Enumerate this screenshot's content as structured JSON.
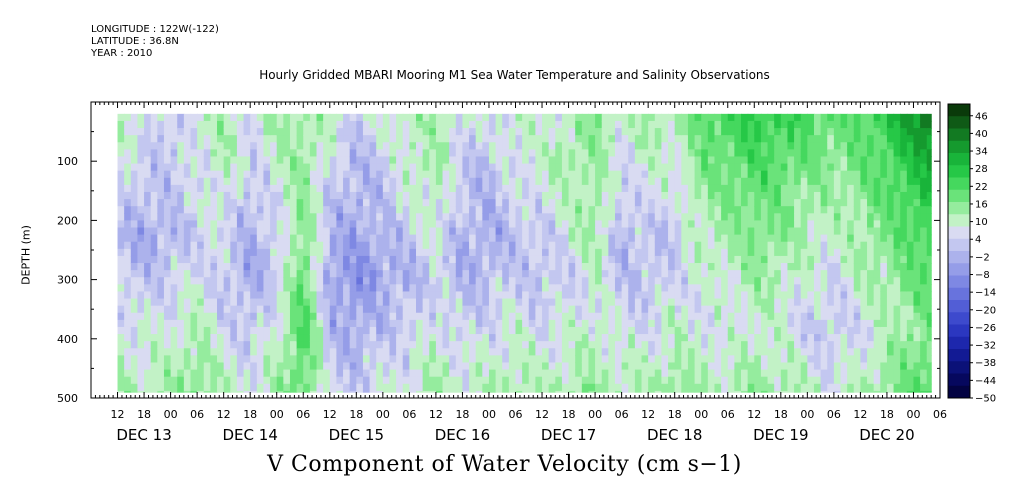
{
  "header": {
    "longitude": "LONGITUDE : 122W(-122)",
    "latitude": "LATITUDE : 36.8N",
    "year": "YEAR : 2010"
  },
  "chart_data": {
    "type": "heatmap",
    "title": "Hourly Gridded MBARI Mooring M1 Sea Water Temperature and Salinity Observations",
    "xlabel": "V Component of Water Velocity (cm s−1)",
    "ylabel": "DEPTH (m)",
    "x_range_hours": [
      0,
      192
    ],
    "hour_ticks": [
      "12",
      "18",
      "00",
      "06",
      "12",
      "18",
      "00",
      "06",
      "12",
      "18",
      "00",
      "06",
      "12",
      "18",
      "00",
      "06",
      "12",
      "18",
      "00",
      "06",
      "12",
      "18",
      "00",
      "06",
      "12",
      "18",
      "00",
      "06",
      "12",
      "18",
      "00",
      "06"
    ],
    "day_labels": [
      "DEC 13",
      "DEC 14",
      "DEC 15",
      "DEC 16",
      "DEC 17",
      "DEC 18",
      "DEC 19",
      "DEC 20"
    ],
    "y_range": [
      0,
      500
    ],
    "y_reversed": true,
    "y_ticks": [
      "100",
      "200",
      "300",
      "400",
      "500"
    ],
    "data_depth_range": [
      20,
      490
    ],
    "data_time_range_hours": [
      6,
      190
    ],
    "colorbar": {
      "labels": [
        "46",
        "40",
        "34",
        "28",
        "22",
        "16",
        "10",
        "4",
        "−2",
        "−8",
        "−14",
        "−20",
        "−26",
        "−32",
        "−38",
        "−44",
        "−50"
      ],
      "min": -50,
      "max": 50,
      "step": 3,
      "colors_high": [
        "#0a3a0a",
        "#0f5a16",
        "#127a22",
        "#159a2e",
        "#19b43a",
        "#26c847",
        "#45d85e",
        "#6ae37a",
        "#95ec9e",
        "#c2f2c6"
      ],
      "colors_low": [
        "#d9dbf2",
        "#c3c7f0",
        "#acb2ec",
        "#959de8",
        "#7e88e3",
        "#6873dd",
        "#525ed6",
        "#3d4acd",
        "#2b37c0",
        "#1d27ad",
        "#121a94",
        "#0b1178",
        "#06085e",
        "#030342"
      ]
    },
    "field": {
      "columns_hours": [
        6,
        12,
        18,
        24,
        30,
        36,
        42,
        48,
        54,
        60,
        66,
        72,
        78,
        84,
        90,
        96,
        102,
        108,
        114,
        120,
        126,
        132,
        138,
        144,
        150,
        156,
        162,
        168,
        174,
        180,
        186,
        190
      ],
      "rows_depth": [
        20,
        60,
        100,
        140,
        180,
        220,
        260,
        300,
        340,
        380,
        420,
        460,
        490
      ],
      "v_cm_s": [
        [
          3,
          0,
          -5,
          2,
          4,
          -3,
          6,
          8,
          2,
          -4,
          0,
          5,
          6,
          0,
          -2,
          3,
          -1,
          2,
          10,
          2,
          6,
          4,
          14,
          18,
          22,
          20,
          16,
          14,
          12,
          22,
          34,
          42
        ],
        [
          2,
          -2,
          -6,
          0,
          6,
          -2,
          4,
          6,
          0,
          -6,
          -2,
          4,
          4,
          -2,
          -4,
          2,
          0,
          4,
          8,
          0,
          4,
          2,
          12,
          16,
          18,
          16,
          14,
          10,
          14,
          18,
          30,
          36
        ],
        [
          0,
          -4,
          -5,
          -2,
          4,
          -4,
          2,
          8,
          -2,
          -8,
          -4,
          2,
          6,
          -4,
          -6,
          0,
          2,
          6,
          6,
          -2,
          2,
          0,
          10,
          14,
          16,
          14,
          12,
          8,
          12,
          16,
          24,
          30
        ],
        [
          -2,
          -6,
          -4,
          -4,
          2,
          -6,
          0,
          6,
          -4,
          -8,
          -6,
          0,
          4,
          -6,
          -8,
          -2,
          0,
          4,
          6,
          -4,
          0,
          -2,
          8,
          10,
          14,
          12,
          8,
          6,
          10,
          14,
          20,
          24
        ],
        [
          -4,
          -8,
          -6,
          -2,
          0,
          -8,
          -2,
          8,
          -6,
          -10,
          -6,
          -2,
          2,
          -6,
          -8,
          -4,
          -2,
          2,
          8,
          -6,
          -2,
          -4,
          6,
          8,
          12,
          10,
          6,
          4,
          8,
          12,
          18,
          20
        ],
        [
          -6,
          -10,
          -8,
          -4,
          -2,
          -8,
          -4,
          10,
          -8,
          -10,
          -8,
          -4,
          0,
          -8,
          -10,
          -6,
          -4,
          0,
          6,
          -8,
          -4,
          -6,
          4,
          6,
          10,
          8,
          4,
          2,
          6,
          10,
          16,
          18
        ],
        [
          -6,
          -8,
          -6,
          -2,
          -4,
          -10,
          -6,
          12,
          -10,
          -12,
          -10,
          -6,
          -2,
          -8,
          -8,
          -6,
          -6,
          -2,
          4,
          -8,
          -6,
          -4,
          2,
          4,
          8,
          6,
          2,
          0,
          4,
          8,
          14,
          16
        ],
        [
          -4,
          -6,
          -4,
          0,
          -6,
          -10,
          -4,
          14,
          -12,
          -14,
          -10,
          -8,
          -4,
          -8,
          -6,
          -4,
          -6,
          -4,
          2,
          -6,
          -6,
          -2,
          0,
          2,
          6,
          4,
          0,
          -2,
          2,
          6,
          12,
          14
        ],
        [
          -2,
          -4,
          -2,
          2,
          -4,
          -8,
          -2,
          16,
          -10,
          -12,
          -8,
          -6,
          -2,
          -6,
          -4,
          -2,
          -4,
          -2,
          0,
          -4,
          -4,
          0,
          -2,
          0,
          4,
          2,
          -2,
          -4,
          0,
          4,
          10,
          12
        ],
        [
          0,
          -2,
          0,
          4,
          -2,
          -6,
          0,
          18,
          -8,
          -10,
          -6,
          -4,
          0,
          -4,
          -2,
          0,
          -2,
          0,
          2,
          -2,
          -2,
          2,
          0,
          -2,
          2,
          0,
          -4,
          -6,
          -2,
          2,
          8,
          10
        ],
        [
          2,
          0,
          2,
          6,
          0,
          -4,
          2,
          16,
          -6,
          -8,
          -4,
          -2,
          2,
          -2,
          0,
          2,
          0,
          2,
          4,
          0,
          0,
          4,
          2,
          0,
          4,
          2,
          -2,
          -4,
          0,
          4,
          10,
          12
        ],
        [
          4,
          2,
          4,
          8,
          2,
          -2,
          4,
          14,
          -4,
          -6,
          -2,
          0,
          4,
          0,
          2,
          4,
          2,
          4,
          6,
          2,
          2,
          6,
          4,
          2,
          6,
          4,
          0,
          -2,
          2,
          6,
          12,
          14
        ],
        [
          6,
          4,
          6,
          10,
          4,
          0,
          6,
          12,
          -2,
          -4,
          0,
          2,
          6,
          2,
          4,
          6,
          4,
          6,
          8,
          4,
          4,
          8,
          6,
          4,
          8,
          6,
          2,
          0,
          4,
          8,
          14,
          16
        ]
      ]
    },
    "grid": false,
    "legend": "right-colorbar"
  }
}
